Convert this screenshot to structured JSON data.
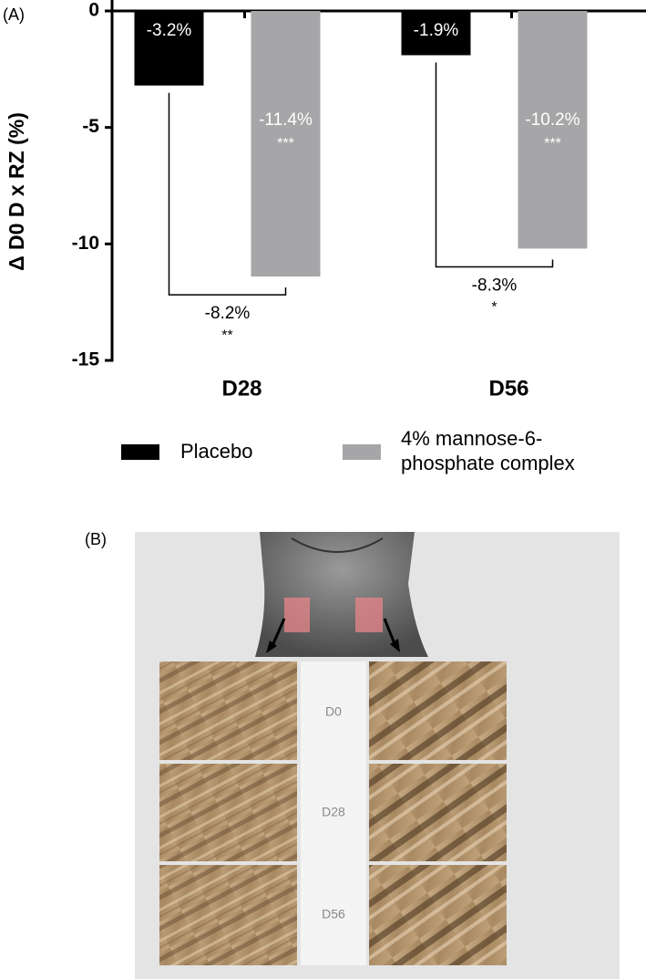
{
  "chart_data": {
    "type": "bar",
    "panel_label": "(A)",
    "ylabel": "Δ D0 D x RZ (%)",
    "categories": [
      "D28",
      "D56"
    ],
    "series": [
      {
        "name": "Placebo",
        "color": "#000000",
        "values": [
          -3.2,
          -1.9
        ],
        "value_labels": [
          "-3.2%",
          "-1.9%"
        ]
      },
      {
        "name": "4% mannose-6-phosphate complex",
        "color": "#a6a6a8",
        "values": [
          -11.4,
          -10.2
        ],
        "value_labels": [
          "-11.4%",
          "-10.2%"
        ],
        "significance": [
          "***",
          "***"
        ]
      }
    ],
    "comparisons": [
      {
        "value": -8.2,
        "label": "-8.2%",
        "significance": "**"
      },
      {
        "value": -8.3,
        "label": "-8.3%",
        "significance": "*"
      }
    ],
    "ylim": [
      -15,
      0
    ],
    "yticks": [
      0,
      -5,
      -10,
      -15
    ]
  },
  "panel_b": {
    "label": "(B)",
    "timepoints": [
      "D0",
      "D28",
      "D56"
    ]
  }
}
